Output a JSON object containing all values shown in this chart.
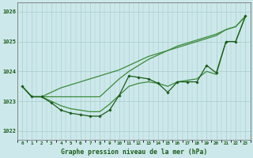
{
  "title": "Graphe pression niveau de la mer (hPa)",
  "bg_color": "#cce8ea",
  "grid_color": "#aacccc",
  "line_color_dark": "#1a5c1a",
  "line_color_light": "#3a8a3a",
  "xlim": [
    -0.5,
    23.5
  ],
  "ylim": [
    1021.7,
    1026.3
  ],
  "yticks": [
    1022,
    1023,
    1024,
    1025,
    1026
  ],
  "xticks": [
    0,
    1,
    2,
    3,
    4,
    5,
    6,
    7,
    8,
    9,
    10,
    11,
    12,
    13,
    14,
    15,
    16,
    17,
    18,
    19,
    20,
    21,
    22,
    23
  ],
  "series_main": [
    1023.5,
    1023.15,
    1023.15,
    1022.95,
    1022.7,
    1022.6,
    1022.55,
    1022.5,
    1022.5,
    1022.7,
    1023.2,
    1023.85,
    1023.8,
    1023.75,
    1023.6,
    1023.3,
    1023.65,
    1023.65,
    1023.65,
    1024.2,
    1023.95,
    1025.0,
    1025.0,
    1025.85
  ],
  "series_upper1": [
    1023.5,
    1023.15,
    1023.15,
    1023.15,
    1023.15,
    1023.15,
    1023.15,
    1023.15,
    1023.15,
    1023.45,
    1023.75,
    1024.0,
    1024.2,
    1024.4,
    1024.55,
    1024.7,
    1024.85,
    1024.95,
    1025.05,
    1025.15,
    1025.25,
    1025.4,
    1025.5,
    1025.85
  ],
  "series_upper2": [
    1023.5,
    1023.15,
    1023.15,
    1023.3,
    1023.45,
    1023.55,
    1023.65,
    1023.75,
    1023.85,
    1023.95,
    1024.05,
    1024.2,
    1024.35,
    1024.5,
    1024.6,
    1024.7,
    1024.8,
    1024.9,
    1025.0,
    1025.1,
    1025.2,
    1025.4,
    1025.5,
    1025.85
  ],
  "series_smooth": [
    1023.5,
    1023.15,
    1023.15,
    1023.0,
    1022.85,
    1022.75,
    1022.7,
    1022.65,
    1022.65,
    1022.9,
    1023.2,
    1023.5,
    1023.6,
    1023.65,
    1023.6,
    1023.5,
    1023.65,
    1023.7,
    1023.75,
    1024.0,
    1023.9,
    1025.0,
    1025.0,
    1025.85
  ]
}
